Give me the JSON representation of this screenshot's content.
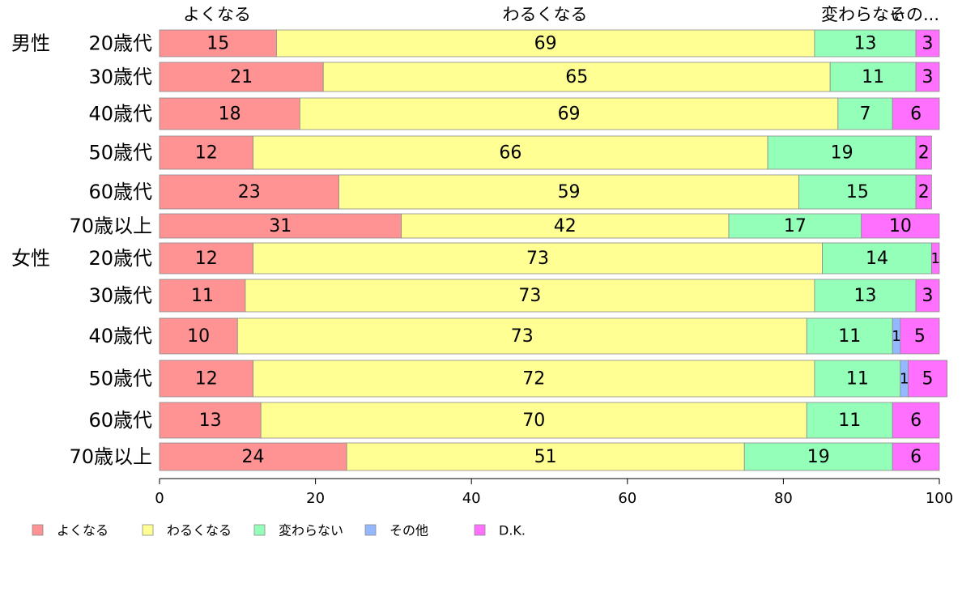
{
  "chart_data": {
    "type": "bar",
    "orientation": "horizontal",
    "stacked": true,
    "xlim": [
      0,
      100
    ],
    "x_ticks": [
      0,
      20,
      40,
      60,
      80,
      100
    ],
    "grid": false,
    "legend_position": "bottom",
    "column_labels": [
      "よくなる",
      "わるくなる",
      "変わらなぃ",
      "その..."
    ],
    "groups": [
      {
        "label": "男性",
        "start_row": 0
      },
      {
        "label": "女性",
        "start_row": 6
      }
    ],
    "categories": [
      "20歳代",
      "30歳代",
      "40歳代",
      "50歳代",
      "60歳代",
      "70歳以上",
      "20歳代",
      "30歳代",
      "40歳代",
      "50歳代",
      "60歳代",
      "70歳以上"
    ],
    "series": [
      {
        "name": "よくなる",
        "color": "#FF9393",
        "values": [
          15,
          21,
          18,
          12,
          23,
          31,
          12,
          11,
          10,
          12,
          13,
          24
        ]
      },
      {
        "name": "わるくなる",
        "color": "#FFFF93",
        "values": [
          69,
          65,
          69,
          66,
          59,
          42,
          73,
          73,
          73,
          72,
          70,
          51
        ]
      },
      {
        "name": "変わらない",
        "color": "#93FFB8",
        "values": [
          13,
          11,
          7,
          19,
          15,
          17,
          14,
          13,
          11,
          11,
          11,
          19
        ]
      },
      {
        "name": "その他",
        "color": "#93B8FF",
        "values": [
          0,
          0,
          0,
          0,
          0,
          0,
          0,
          0,
          1,
          1,
          0,
          0
        ]
      },
      {
        "name": "D.K.",
        "color": "#FF70FF",
        "values": [
          3,
          3,
          6,
          2,
          2,
          10,
          1,
          3,
          5,
          5,
          6,
          6
        ]
      }
    ]
  }
}
